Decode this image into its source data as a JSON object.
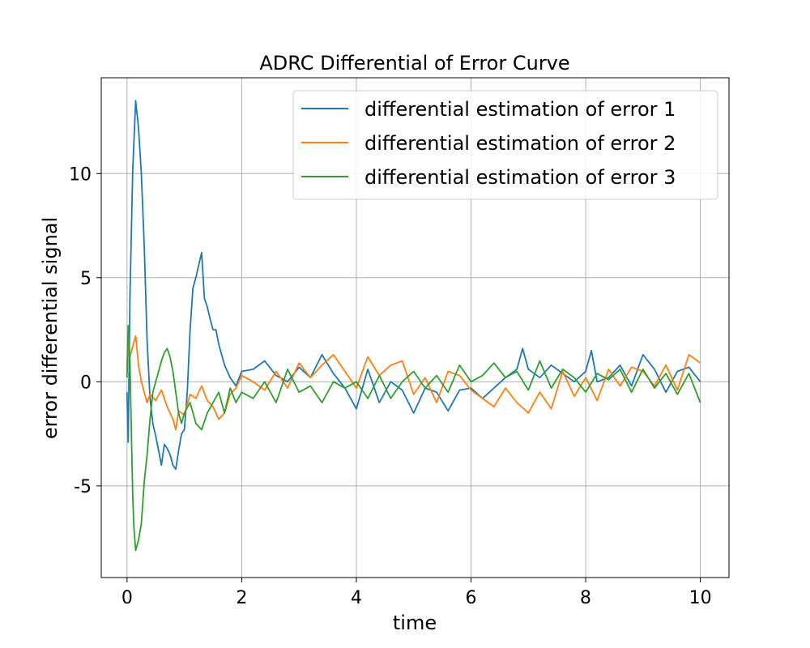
{
  "chart_data": {
    "type": "line",
    "title": "ADRC Differential of Error Curve",
    "xlabel": "time",
    "ylabel": "error differential signal",
    "xlim": [
      -0.45,
      10.5
    ],
    "ylim": [
      -9.4,
      14.6
    ],
    "xticks": [
      0,
      2,
      4,
      6,
      8,
      10
    ],
    "xtick_labels": [
      "0",
      "2",
      "4",
      "6",
      "8",
      "10"
    ],
    "yticks": [
      -5,
      0,
      5,
      10
    ],
    "ytick_labels": [
      "-5",
      "0",
      "5",
      "10"
    ],
    "grid": true,
    "legend_position": "top-right",
    "series": [
      {
        "name": "differential estimation of error 1",
        "color": "#1f77b4",
        "x": [
          0.0,
          0.02,
          0.05,
          0.1,
          0.15,
          0.2,
          0.25,
          0.3,
          0.35,
          0.4,
          0.45,
          0.5,
          0.55,
          0.6,
          0.65,
          0.7,
          0.75,
          0.8,
          0.85,
          0.9,
          0.95,
          1.0,
          1.05,
          1.1,
          1.15,
          1.2,
          1.25,
          1.3,
          1.35,
          1.4,
          1.45,
          1.5,
          1.55,
          1.6,
          1.7,
          1.8,
          1.9,
          2.0,
          2.2,
          2.4,
          2.6,
          2.8,
          3.0,
          3.2,
          3.4,
          3.6,
          3.8,
          4.0,
          4.2,
          4.4,
          4.6,
          4.8,
          5.0,
          5.2,
          5.4,
          5.6,
          5.8,
          6.0,
          6.2,
          6.4,
          6.6,
          6.8,
          6.9,
          7.0,
          7.2,
          7.4,
          7.6,
          7.8,
          8.0,
          8.1,
          8.2,
          8.4,
          8.6,
          8.8,
          9.0,
          9.2,
          9.4,
          9.6,
          9.8,
          10.0
        ],
        "y": [
          -0.5,
          -2.9,
          4.0,
          10.2,
          13.5,
          12.2,
          10.0,
          6.5,
          2.0,
          -0.8,
          -2.0,
          -2.6,
          -3.3,
          -4.0,
          -3.0,
          -3.2,
          -3.5,
          -4.0,
          -4.2,
          -3.3,
          -2.5,
          -2.3,
          -0.5,
          2.5,
          4.5,
          5.0,
          5.6,
          6.2,
          4.0,
          3.6,
          3.0,
          2.5,
          2.5,
          1.8,
          0.8,
          0.2,
          -0.2,
          0.5,
          0.6,
          1.0,
          0.3,
          0.0,
          0.7,
          0.2,
          1.3,
          0.4,
          -0.3,
          -1.3,
          0.6,
          -1.0,
          0.0,
          -0.4,
          -1.5,
          -0.3,
          -0.5,
          -1.4,
          -0.4,
          -0.3,
          -0.8,
          -0.3,
          0.2,
          0.6,
          1.6,
          0.6,
          0.2,
          0.8,
          0.4,
          0.0,
          0.5,
          1.5,
          0.0,
          0.2,
          0.8,
          -0.2,
          1.3,
          0.6,
          -0.5,
          0.5,
          0.7,
          0.0
        ]
      },
      {
        "name": "differential estimation of error 2",
        "color": "#ff7f0e",
        "x": [
          0.0,
          0.02,
          0.05,
          0.1,
          0.15,
          0.2,
          0.25,
          0.3,
          0.35,
          0.4,
          0.5,
          0.6,
          0.7,
          0.8,
          0.85,
          0.9,
          1.0,
          1.1,
          1.2,
          1.3,
          1.4,
          1.5,
          1.6,
          1.7,
          1.8,
          1.9,
          2.0,
          2.2,
          2.4,
          2.6,
          2.8,
          3.0,
          3.2,
          3.4,
          3.6,
          3.8,
          4.0,
          4.2,
          4.4,
          4.6,
          4.8,
          5.0,
          5.2,
          5.4,
          5.6,
          5.8,
          6.0,
          6.2,
          6.4,
          6.6,
          6.8,
          7.0,
          7.2,
          7.4,
          7.6,
          7.8,
          8.0,
          8.2,
          8.4,
          8.6,
          8.8,
          9.0,
          9.2,
          9.4,
          9.6,
          9.8,
          10.0
        ],
        "y": [
          0.5,
          2.4,
          1.2,
          1.7,
          2.2,
          0.8,
          0.0,
          -0.5,
          -1.0,
          -0.6,
          -0.9,
          -0.4,
          -1.2,
          -1.8,
          -2.3,
          -1.4,
          -1.6,
          -0.6,
          -0.8,
          -0.2,
          -0.9,
          -1.2,
          -1.8,
          -1.5,
          -0.6,
          -0.3,
          0.3,
          0.0,
          -0.4,
          0.5,
          -0.3,
          0.9,
          0.2,
          0.8,
          1.3,
          0.5,
          -0.3,
          1.2,
          0.3,
          0.8,
          1.0,
          -0.6,
          0.2,
          -1.0,
          0.5,
          0.3,
          -0.4,
          -0.8,
          -1.2,
          -0.3,
          -1.0,
          -1.5,
          -0.5,
          -1.3,
          0.5,
          -0.7,
          0.2,
          -0.9,
          0.6,
          -0.2,
          0.7,
          0.5,
          -0.2,
          0.8,
          -0.4,
          1.3,
          0.9
        ]
      },
      {
        "name": "differential estimation of error 3",
        "color": "#2ca02c",
        "x": [
          0.0,
          0.02,
          0.05,
          0.08,
          0.1,
          0.12,
          0.15,
          0.2,
          0.25,
          0.3,
          0.35,
          0.4,
          0.45,
          0.5,
          0.55,
          0.6,
          0.65,
          0.7,
          0.75,
          0.8,
          0.85,
          0.9,
          0.95,
          1.0,
          1.1,
          1.2,
          1.3,
          1.4,
          1.5,
          1.6,
          1.7,
          1.8,
          1.9,
          2.0,
          2.2,
          2.4,
          2.6,
          2.8,
          3.0,
          3.2,
          3.4,
          3.6,
          3.8,
          4.0,
          4.2,
          4.4,
          4.6,
          4.8,
          5.0,
          5.2,
          5.4,
          5.6,
          5.8,
          6.0,
          6.2,
          6.4,
          6.6,
          6.8,
          7.0,
          7.2,
          7.4,
          7.6,
          7.8,
          8.0,
          8.2,
          8.4,
          8.6,
          8.8,
          9.0,
          9.2,
          9.4,
          9.6,
          9.8,
          10.0
        ],
        "y": [
          0.2,
          2.7,
          1.0,
          -3.0,
          -5.5,
          -7.0,
          -8.1,
          -7.6,
          -6.8,
          -4.8,
          -3.5,
          -1.8,
          -0.5,
          0.0,
          0.5,
          1.0,
          1.4,
          1.6,
          1.2,
          0.5,
          -0.5,
          -1.5,
          -2.0,
          -1.5,
          -1.0,
          -2.0,
          -2.3,
          -1.5,
          -1.0,
          -0.5,
          -1.5,
          -0.3,
          -1.0,
          -0.5,
          -0.8,
          0.0,
          -1.0,
          0.6,
          -0.5,
          -0.2,
          -1.0,
          0.0,
          -0.3,
          0.0,
          -0.8,
          0.3,
          -0.8,
          0.0,
          0.5,
          -0.3,
          0.3,
          -0.5,
          0.8,
          0.0,
          0.3,
          0.9,
          0.2,
          0.5,
          -0.4,
          1.0,
          -0.3,
          0.6,
          0.2,
          -0.5,
          0.4,
          0.1,
          0.6,
          -0.5,
          0.6,
          -0.3,
          0.4,
          -0.6,
          0.4,
          -1.0
        ]
      }
    ]
  }
}
